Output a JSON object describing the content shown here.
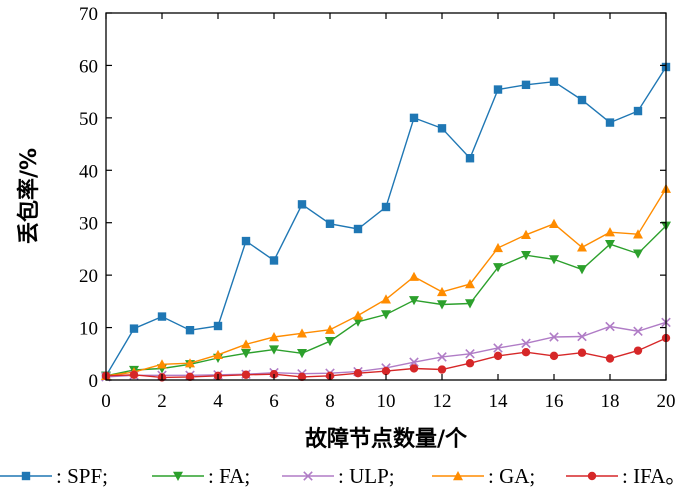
{
  "chart_data": {
    "type": "line",
    "xlabel": "故障节点数量/个",
    "ylabel": "丢包率/%",
    "xlim": [
      0,
      20
    ],
    "ylim": [
      0,
      70
    ],
    "x_ticks": [
      0,
      2,
      4,
      6,
      8,
      10,
      12,
      14,
      16,
      18,
      20
    ],
    "y_ticks": [
      0,
      10,
      20,
      30,
      40,
      50,
      60,
      70
    ],
    "x": [
      0,
      1,
      2,
      3,
      4,
      5,
      6,
      7,
      8,
      9,
      10,
      11,
      12,
      13,
      14,
      15,
      16,
      17,
      18,
      19,
      20
    ],
    "grid": false,
    "legend_position": "bottom",
    "series": [
      {
        "name": "SPF",
        "legend_label": ": SPF;",
        "color": "#1f77b4",
        "marker": "square",
        "values": [
          0.8,
          9.8,
          12.1,
          9.5,
          10.3,
          26.5,
          22.8,
          33.5,
          29.8,
          28.8,
          33.0,
          50.0,
          48.0,
          42.3,
          55.4,
          56.3,
          56.9,
          53.4,
          49.1,
          51.3,
          59.7
        ]
      },
      {
        "name": "FA",
        "legend_label": ": FA;",
        "color": "#2ca02c",
        "marker": "triangle-down",
        "values": [
          0.8,
          1.9,
          2.2,
          3.0,
          4.2,
          5.1,
          5.8,
          5.1,
          7.4,
          11.1,
          12.5,
          15.2,
          14.4,
          14.6,
          21.5,
          23.8,
          23.0,
          21.1,
          25.9,
          24.1,
          29.4
        ]
      },
      {
        "name": "ULP",
        "legend_label": ": ULP;",
        "color": "#b07cc6",
        "marker": "x",
        "values": [
          0.6,
          0.9,
          0.9,
          0.9,
          1.0,
          1.1,
          1.4,
          1.2,
          1.3,
          1.6,
          2.3,
          3.4,
          4.4,
          5.0,
          6.1,
          7.0,
          8.2,
          8.3,
          10.2,
          9.3,
          11.0
        ]
      },
      {
        "name": "GA",
        "legend_label": ": GA;",
        "color": "#ff8c00",
        "marker": "triangle-up",
        "values": [
          0.8,
          1.5,
          3.0,
          3.2,
          4.8,
          6.8,
          8.2,
          8.9,
          9.6,
          12.3,
          15.4,
          19.7,
          16.8,
          18.3,
          25.2,
          27.7,
          29.8,
          25.3,
          28.2,
          27.8,
          36.5
        ]
      },
      {
        "name": "IFA",
        "legend_label": ": IFA。",
        "color": "#d62728",
        "marker": "circle",
        "values": [
          0.8,
          1.0,
          0.5,
          0.6,
          0.8,
          1.0,
          1.1,
          0.6,
          0.8,
          1.3,
          1.7,
          2.2,
          2.0,
          3.2,
          4.6,
          5.3,
          4.6,
          5.2,
          4.1,
          5.6,
          8.0
        ]
      }
    ]
  }
}
